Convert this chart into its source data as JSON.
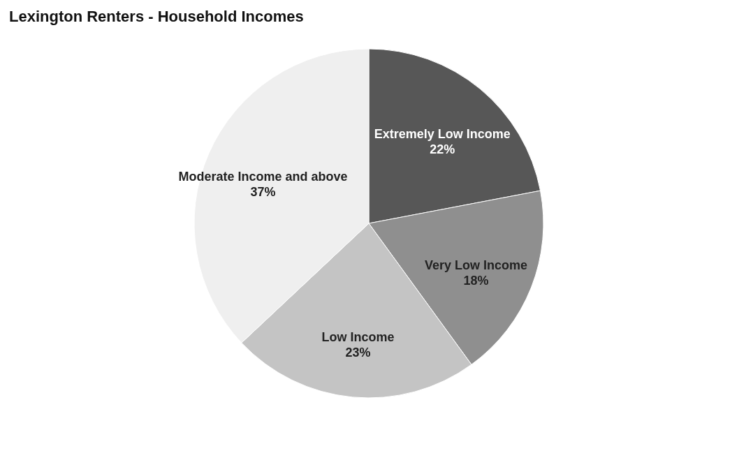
{
  "chart_data": {
    "type": "pie",
    "title": "Lexington Renters - Household Incomes",
    "categories": [
      "Extremely Low Income",
      "Very Low Income",
      "Low Income",
      "Moderate Income and above"
    ],
    "values": [
      22,
      18,
      23,
      37
    ],
    "value_labels": [
      "22%",
      "18%",
      "23%",
      "37%"
    ],
    "colors": [
      "#575757",
      "#8f8f8f",
      "#c4c4c4",
      "#efefef"
    ],
    "legend": false
  }
}
